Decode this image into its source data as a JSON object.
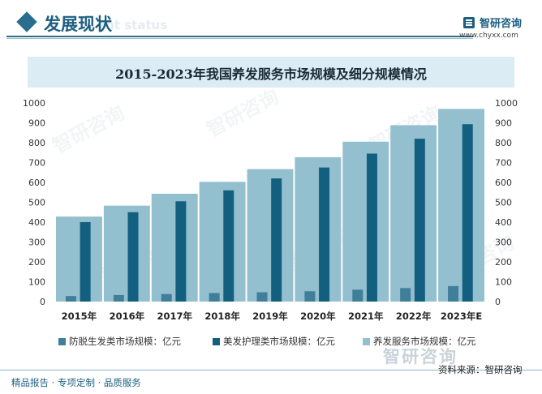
{
  "header": {
    "title": "发展现状",
    "title_ghost": "ent status",
    "brand_name": "智研咨询",
    "brand_url": "www.chyxx.com"
  },
  "watermark_text": "智研咨询",
  "footer": {
    "left": "精品报告 · 专项定制 · 品质服务",
    "source": "资料来源：智研咨询"
  },
  "colors": {
    "accent": "#2a6d8e",
    "series_small": "#3f7f99",
    "series_mid": "#135f7f",
    "series_large": "#93bfcf"
  },
  "chart_data": {
    "type": "bar",
    "title": "2015-2023年我国养发服务市场规模及细分规模情况",
    "categories": [
      "2015年",
      "2016年",
      "2017年",
      "2018年",
      "2019年",
      "2020年",
      "2021年",
      "2022年",
      "2023年E"
    ],
    "series": [
      {
        "name": "防脱生发类市场规模：亿元",
        "values": [
          28,
          33,
          38,
          43,
          47,
          52,
          60,
          68,
          78
        ]
      },
      {
        "name": "美发护理类市场规模：亿元",
        "values": [
          400,
          450,
          505,
          560,
          620,
          675,
          745,
          820,
          893
        ]
      },
      {
        "name": "养发服务市场规模：亿元",
        "values": [
          428,
          483,
          543,
          603,
          667,
          727,
          805,
          888,
          970
        ]
      }
    ],
    "ylim": [
      0,
      1000
    ],
    "yticks": [
      0,
      100,
      200,
      300,
      400,
      500,
      600,
      700,
      800,
      900,
      1000
    ],
    "grid": false,
    "legend": "bottom"
  }
}
